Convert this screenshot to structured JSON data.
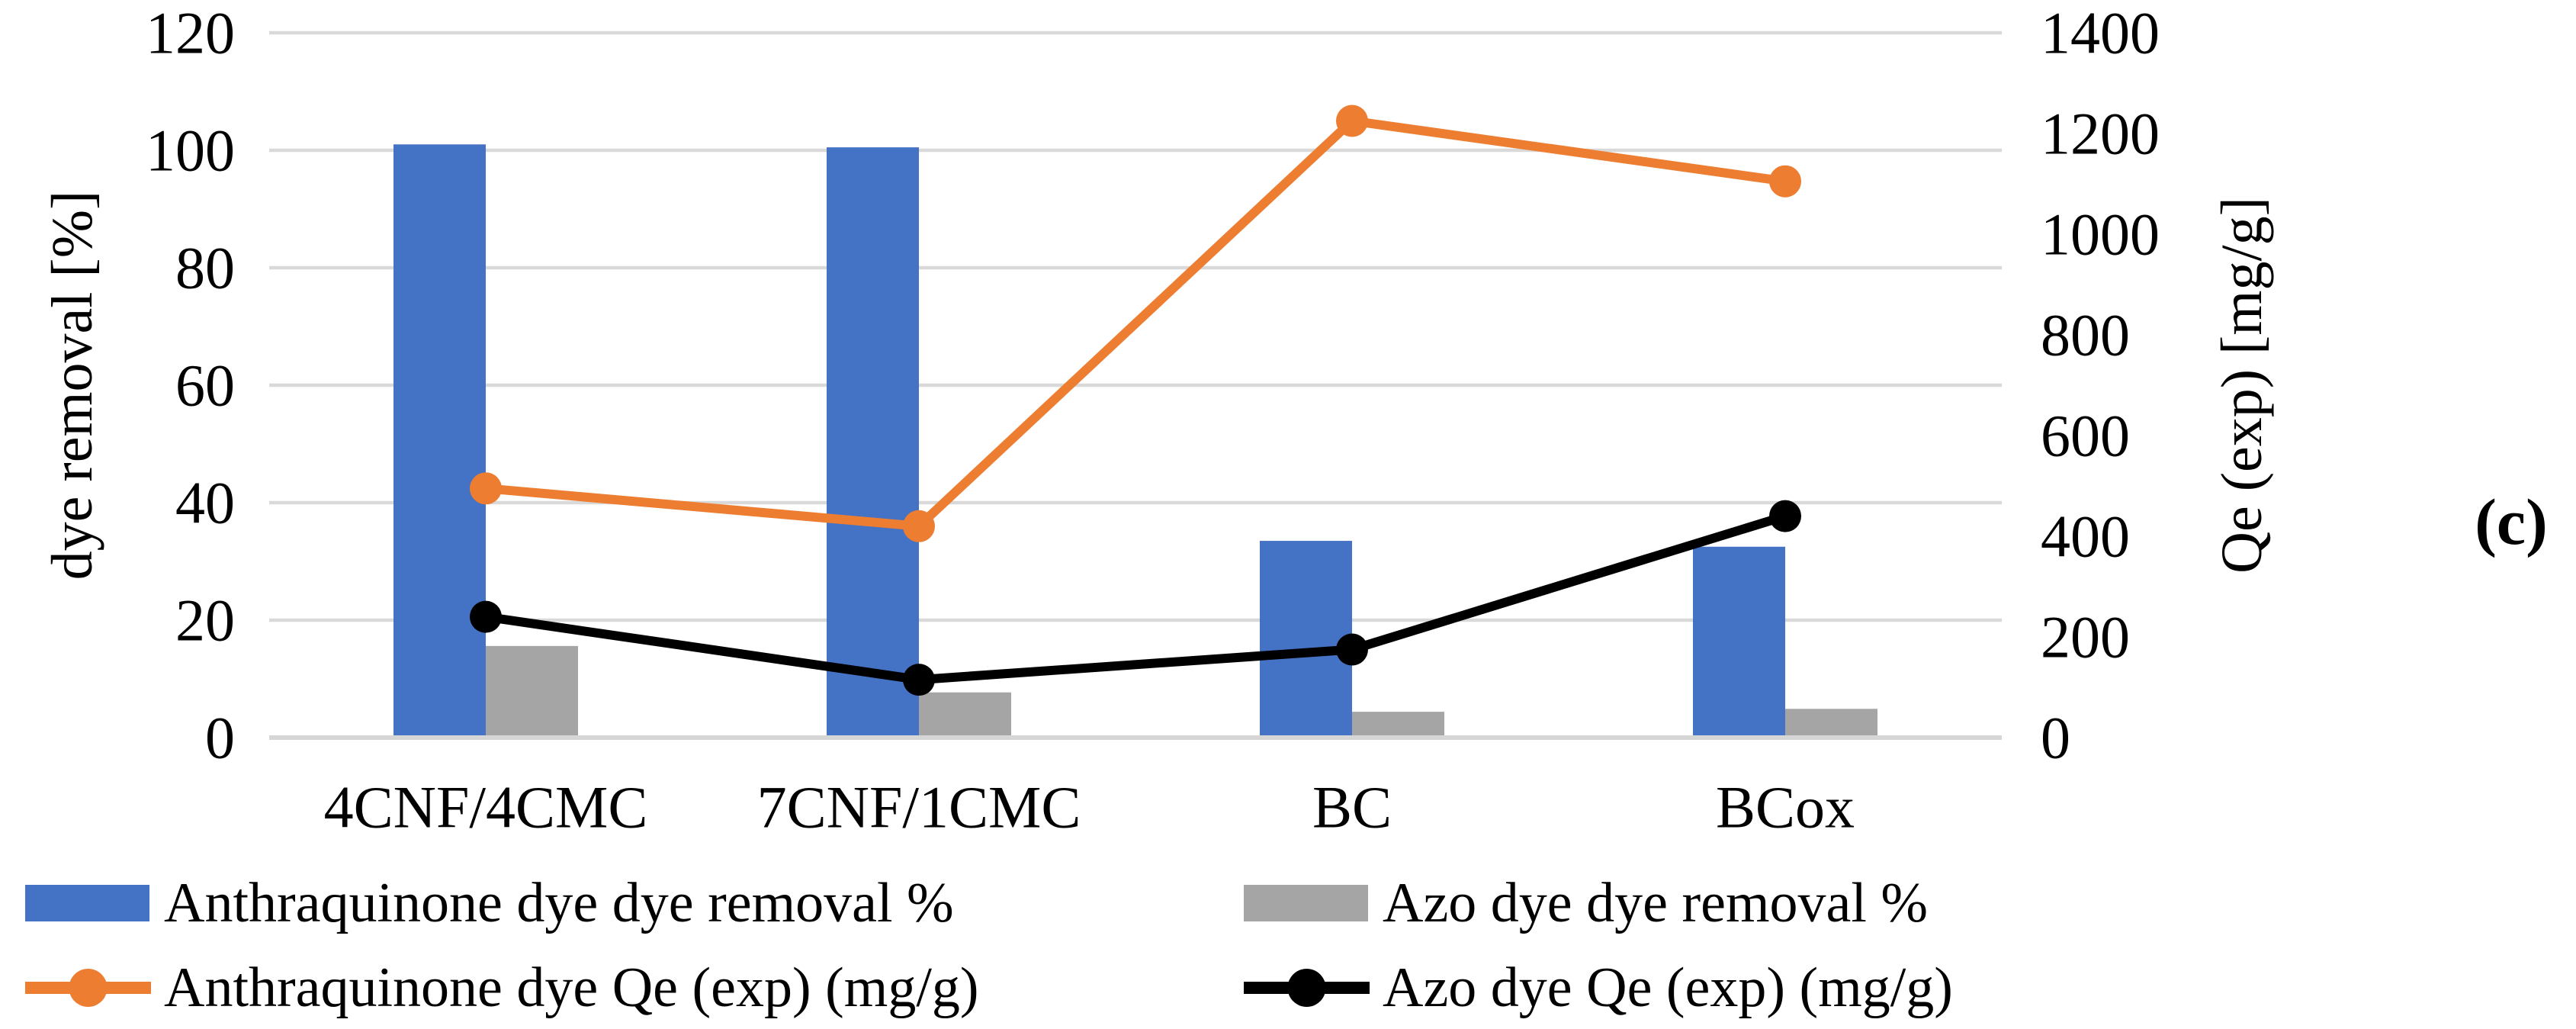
{
  "panel_label": "(c)",
  "left_axis": {
    "title": "dye removal [%]",
    "ticks": [
      0,
      20,
      40,
      60,
      80,
      100,
      120
    ],
    "max": 120
  },
  "right_axis": {
    "title": "Qe (exp) [mg/g]",
    "ticks": [
      0,
      200,
      400,
      600,
      800,
      1000,
      1200,
      1400
    ],
    "max": 1400
  },
  "colors": {
    "anthraquinone_bar": "#4472C4",
    "azo_bar": "#A5A5A5",
    "anthraquinone_line": "#ED7D31",
    "azo_line": "#000000",
    "gridline": "#D9D9D9",
    "axis_line": "#D6D6D6"
  },
  "chart_data": {
    "type": "bar+line",
    "categories": [
      "4CNF/4CMC",
      "7CNF/1CMC",
      "BC",
      "BCox"
    ],
    "series": [
      {
        "name": "Anthraquinone dye dye removal %",
        "type": "bar",
        "axis": "left",
        "color": "#4472C4",
        "values": [
          101,
          100.5,
          33.5,
          32.5
        ]
      },
      {
        "name": "Azo dye dye removal %",
        "type": "bar",
        "axis": "left",
        "color": "#A5A5A5",
        "values": [
          15.6,
          7.7,
          4.4,
          4.9
        ]
      },
      {
        "name": "Anthraquinone dye Qe (exp) (mg/g)",
        "type": "line",
        "axis": "right",
        "color": "#ED7D31",
        "values": [
          495,
          420,
          1225,
          1105
        ]
      },
      {
        "name": "Azo dye Qe (exp) (mg/g)",
        "type": "line",
        "axis": "right",
        "color": "#000000",
        "values": [
          240,
          115,
          175,
          440
        ]
      }
    ],
    "left_ylim": [
      0,
      120
    ],
    "right_ylim": [
      0,
      1400
    ],
    "grid": true,
    "legend_position": "bottom-two-columns",
    "xlabel": "",
    "ylabel_left": "dye removal [%]",
    "ylabel_right": "Qe (exp) [mg/g]"
  }
}
